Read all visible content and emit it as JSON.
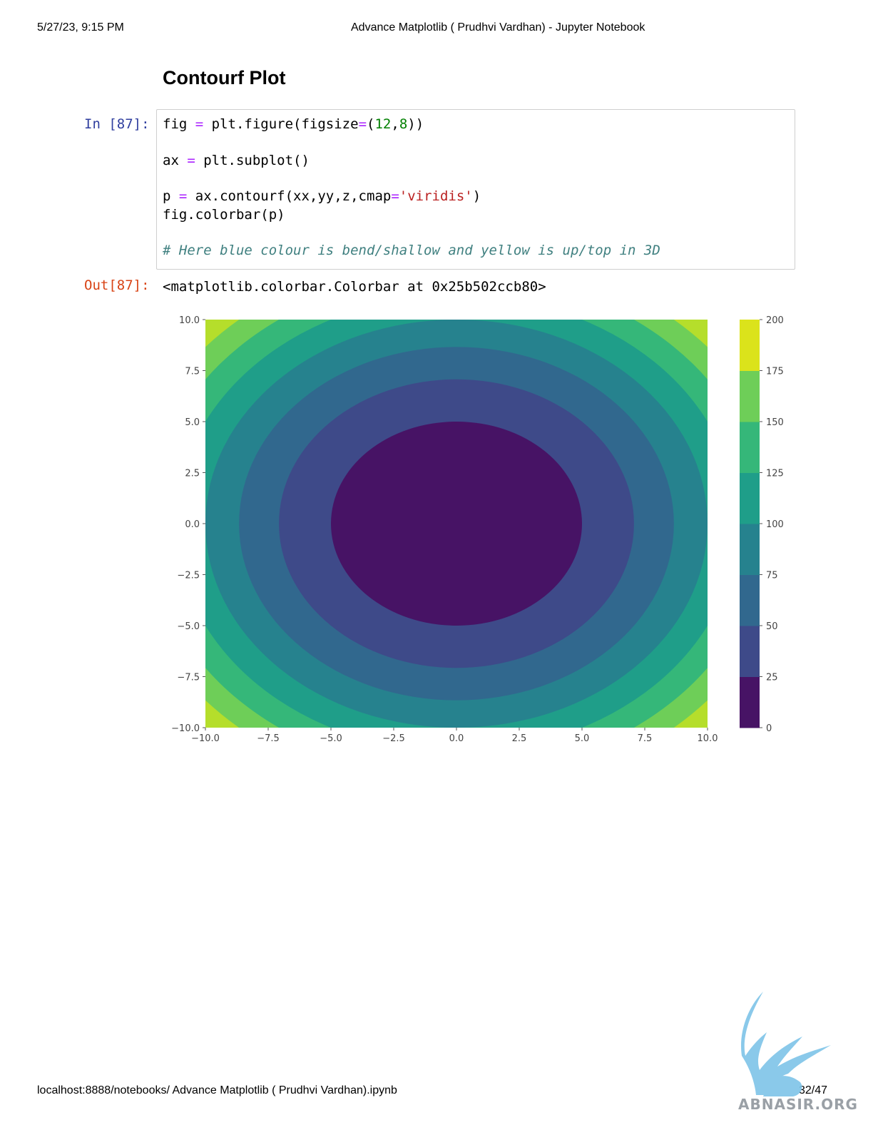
{
  "header": {
    "datetime": "5/27/23, 9:15 PM",
    "title": "Advance Matplotlib ( Prudhvi Vardhan) - Jupyter Notebook"
  },
  "section": {
    "heading": "Contourf Plot"
  },
  "cell": {
    "in_prompt": "In [87]:",
    "out_prompt": "Out[87]:",
    "code": {
      "l1": {
        "a": "fig ",
        "b": "=",
        "c": " plt.figure(figsize",
        "d": "=",
        "e": "(",
        "f": "12",
        "g": ",",
        "h": "8",
        "i": "))"
      },
      "l2": {
        "a": "ax ",
        "b": "=",
        "c": " plt.subplot()"
      },
      "l3": {
        "a": "p ",
        "b": "=",
        "c": " ax.contourf(xx,yy,z,cmap",
        "d": "=",
        "e": "'viridis'",
        "f": ")"
      },
      "l4": "fig.colorbar(p)",
      "l5": "# Here blue colour is bend/shallow and yellow is up/top in 3D"
    },
    "output_text": "<matplotlib.colorbar.Colorbar at 0x25b502ccb80>"
  },
  "chart_data": {
    "type": "contourf",
    "function": "z = x^2 + y^2",
    "cmap": "viridis",
    "xlim": [
      -10,
      10
    ],
    "ylim": [
      -10,
      10
    ],
    "x_ticks": [
      "−10.0",
      "−7.5",
      "−5.0",
      "−2.5",
      "0.0",
      "2.5",
      "5.0",
      "7.5",
      "10.0"
    ],
    "y_ticks": [
      "10.0",
      "7.5",
      "5.0",
      "2.5",
      "0.0",
      "−2.5",
      "−5.0",
      "−7.5",
      "−10.0"
    ],
    "levels": [
      0,
      25,
      50,
      75,
      100,
      125,
      150,
      175,
      200
    ],
    "level_colors": [
      "#471365",
      "#3e4a89",
      "#31688e",
      "#26828e",
      "#1f9e89",
      "#35b779",
      "#6ece58",
      "#b5de2b"
    ],
    "top_color": "#dbe31b",
    "colorbar_ticks": [
      "200",
      "175",
      "150",
      "125",
      "100",
      "75",
      "50",
      "25",
      "0"
    ]
  },
  "footer": {
    "url": "localhost:8888/notebooks/ Advance Matplotlib ( Prudhvi Vardhan).ipynb",
    "page": "32/47"
  },
  "watermark": {
    "text": "ABNASIR.ORG"
  }
}
